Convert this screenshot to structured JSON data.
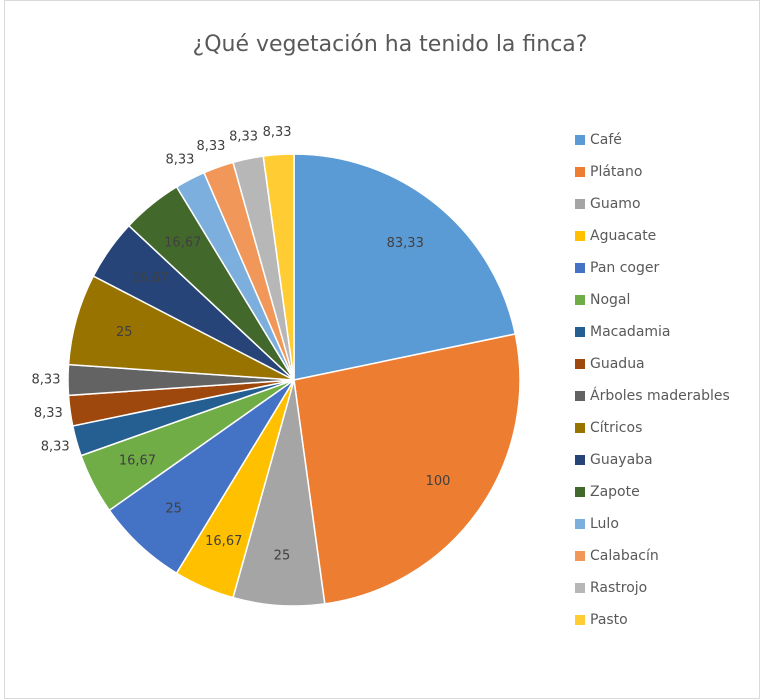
{
  "chart_data": {
    "type": "pie",
    "title": "¿Qué vegetación ha tenido la finca?",
    "categories": [
      "Café",
      "Plátano",
      "Guamo",
      "Aguacate",
      "Pan coger",
      "Nogal",
      "Macadamia",
      "Guadua",
      "Árboles maderables",
      "Cítricos",
      "Guayaba",
      "Zapote",
      "Lulo",
      "Calabacín",
      "Rastrojo",
      "Pasto"
    ],
    "values": [
      83.33,
      100,
      25,
      16.67,
      25,
      16.67,
      8.33,
      8.33,
      8.33,
      25,
      16.67,
      16.67,
      8.33,
      8.33,
      8.33,
      8.33
    ],
    "value_labels": [
      "83,33",
      "100",
      "25",
      "16,67",
      "25",
      "16,67",
      "8,33",
      "8,33",
      "8,33",
      "25",
      "16,67",
      "16,67",
      "8,33",
      "8,33",
      "8,33",
      "8,33"
    ],
    "colors": [
      "#5b9bd5",
      "#ed7d31",
      "#a5a5a5",
      "#ffc000",
      "#4472c4",
      "#70ad47",
      "#255e91",
      "#9e480e",
      "#636363",
      "#997300",
      "#264478",
      "#43682b",
      "#7cafdd",
      "#f1975a",
      "#b7b7b7",
      "#ffcd33"
    ],
    "legend": "right"
  }
}
